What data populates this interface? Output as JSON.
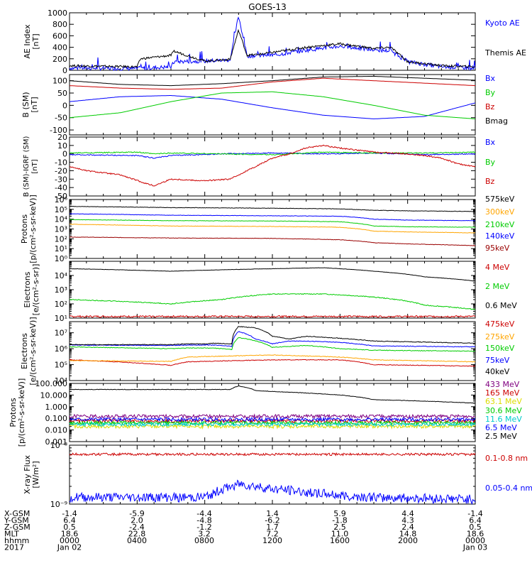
{
  "figure": {
    "title": "GOES-13"
  },
  "colors": {
    "black": "#000000",
    "blue": "#0000ff",
    "green": "#00cc00",
    "red": "#cc0000",
    "darkred": "#990000",
    "orange": "#ffa500",
    "cyan": "#00cccc",
    "yellow": "#dddd00",
    "purple": "#800080"
  },
  "chart_data": [
    {
      "type": "line",
      "title": "",
      "ylabel": "AE Index\n[nT]",
      "y_scale": "linear",
      "ylim": [
        0,
        1000
      ],
      "yticks": [
        0,
        200,
        400,
        600,
        800,
        1000
      ],
      "ytick_labels": [
        "0",
        "200",
        "400",
        "600",
        "800",
        "1000"
      ],
      "grid": false,
      "series": [
        {
          "name": "Kyoto AE",
          "color": "#0000ff",
          "noise": 70,
          "spiky": true,
          "x": [
            0,
            4,
            6,
            6.2,
            8,
            9.5,
            10,
            10.5,
            11.3,
            12,
            14,
            16,
            18,
            19,
            20,
            22,
            24
          ],
          "y": [
            40,
            30,
            60,
            150,
            160,
            180,
            950,
            250,
            260,
            260,
            350,
            420,
            350,
            340,
            150,
            60,
            40
          ]
        },
        {
          "name": "Themis AE",
          "color": "#000000",
          "noise": 40,
          "spiky": false,
          "x": [
            0,
            4,
            4.2,
            6,
            6.2,
            8,
            9.5,
            10,
            10.5,
            11.3,
            12,
            14,
            16,
            18,
            19,
            20,
            22,
            24
          ],
          "y": [
            80,
            60,
            200,
            260,
            330,
            160,
            190,
            700,
            260,
            280,
            310,
            400,
            460,
            380,
            400,
            150,
            80,
            60
          ]
        }
      ]
    },
    {
      "type": "line",
      "title": "",
      "ylabel": "B (SM)\n[nT]",
      "y_scale": "linear",
      "ylim": [
        -120,
        125
      ],
      "yticks": [
        -100,
        -50,
        0,
        50,
        100
      ],
      "ytick_labels": [
        "-100",
        "-50",
        "0",
        "50",
        "100"
      ],
      "grid": false,
      "series": [
        {
          "name": "Bx",
          "color": "#0000ff",
          "noise": 0,
          "x": [
            0,
            3,
            6,
            9,
            12,
            15,
            18,
            21,
            24
          ],
          "y": [
            15,
            35,
            40,
            25,
            -10,
            -40,
            -55,
            -45,
            10
          ]
        },
        {
          "name": "By",
          "color": "#00cc00",
          "noise": 0,
          "x": [
            0,
            3,
            6,
            9,
            12,
            15,
            18,
            21,
            24
          ],
          "y": [
            -50,
            -30,
            15,
            50,
            55,
            35,
            0,
            -40,
            -55
          ]
        },
        {
          "name": "Bz",
          "color": "#cc0000",
          "noise": 0,
          "x": [
            0,
            3,
            6,
            9,
            12,
            15,
            18,
            21,
            24
          ],
          "y": [
            80,
            70,
            65,
            70,
            95,
            110,
            100,
            90,
            80
          ]
        },
        {
          "name": "Bmag",
          "color": "#000000",
          "noise": 0,
          "x": [
            0,
            3,
            6,
            9,
            12,
            15,
            18,
            21,
            24
          ],
          "y": [
            100,
            85,
            80,
            88,
            100,
            115,
            118,
            110,
            102
          ]
        }
      ]
    },
    {
      "type": "line",
      "title": "",
      "ylabel": "B (SM)-IGRF (SM)\n[nT]",
      "y_scale": "linear",
      "ylim": [
        -50,
        20
      ],
      "yticks": [
        -50,
        -40,
        -30,
        -20,
        -10,
        0,
        10,
        20
      ],
      "ytick_labels": [
        "-50",
        "-40",
        "-30",
        "-20",
        "-10",
        "0",
        "10",
        "20"
      ],
      "grid": false,
      "series": [
        {
          "name": "Bx",
          "color": "#0000ff",
          "noise": 1.2,
          "x": [
            0,
            4,
            5,
            6,
            9,
            12,
            15,
            18,
            21,
            24
          ],
          "y": [
            -1,
            -2,
            -5,
            -2,
            0,
            1,
            0,
            1,
            -1,
            0
          ]
        },
        {
          "name": "By",
          "color": "#00cc00",
          "noise": 1.2,
          "x": [
            0,
            4,
            5,
            6,
            9,
            12,
            15,
            18,
            21,
            24
          ],
          "y": [
            1,
            2,
            0,
            1,
            0,
            -1,
            2,
            1,
            1,
            2
          ]
        },
        {
          "name": "Bz",
          "color": "#cc0000",
          "noise": 1.5,
          "x": [
            0,
            1,
            3,
            4.5,
            5,
            6,
            8,
            9.5,
            11,
            12,
            13,
            14,
            15,
            16,
            18,
            20,
            21,
            22,
            23,
            24
          ],
          "y": [
            -15,
            -20,
            -25,
            -35,
            -38,
            -30,
            -32,
            -30,
            -15,
            -5,
            0,
            7,
            10,
            7,
            2,
            0,
            -2,
            -5,
            -12,
            -15
          ]
        }
      ]
    },
    {
      "type": "line",
      "title": "",
      "ylabel": "Protons\n[p/(cm²-s-sr-keV)]",
      "y_scale": "log",
      "ylim": [
        1,
        1000000
      ],
      "yticks": [
        1,
        10,
        100,
        1000,
        10000,
        100000,
        1000000
      ],
      "ytick_labels": [
        "10⁰",
        "10¹",
        "10²",
        "10³",
        "10⁴",
        "10⁵",
        "10⁶"
      ],
      "grid": false,
      "series": [
        {
          "name": "575keV",
          "color": "#000000",
          "noise": 0.02,
          "x": [
            0,
            6,
            12,
            16,
            18,
            20,
            24
          ],
          "y": [
            200000,
            150000,
            130000,
            110000,
            80000,
            70000,
            60000
          ]
        },
        {
          "name": "300keV",
          "color": "#ffa500",
          "noise": 0.02,
          "x": [
            0,
            6,
            12,
            16,
            18,
            20,
            24
          ],
          "y": [
            3000,
            2000,
            1800,
            1500,
            600,
            500,
            400
          ]
        },
        {
          "name": "210keV",
          "color": "#00cc00",
          "noise": 0.02,
          "x": [
            0,
            6,
            12,
            16,
            18,
            20,
            24
          ],
          "y": [
            9000,
            7000,
            6500,
            5500,
            2000,
            1700,
            1500
          ]
        },
        {
          "name": "140keV",
          "color": "#0000ff",
          "noise": 0.02,
          "x": [
            0,
            6,
            12,
            16,
            18,
            20,
            24
          ],
          "y": [
            35000,
            25000,
            22000,
            20000,
            10000,
            8000,
            7000
          ]
        },
        {
          "name": "95keV",
          "color": "#990000",
          "noise": 0.02,
          "x": [
            0,
            6,
            12,
            16,
            18,
            20,
            24
          ],
          "y": [
            150,
            120,
            110,
            80,
            40,
            30,
            20
          ]
        }
      ]
    },
    {
      "type": "line",
      "title": "",
      "ylabel": "Electrons\n[e/(cm²-s-sr)]",
      "y_scale": "log",
      "ylim": [
        10,
        100000
      ],
      "yticks": [
        10,
        100,
        1000,
        10000
      ],
      "ytick_labels": [
        "10¹",
        "10²",
        "10³",
        "10⁴"
      ],
      "grid": false,
      "series": [
        {
          "name": "4 MeV",
          "color": "#cc0000",
          "noise": 0.06,
          "x": [
            0,
            24
          ],
          "y": [
            13,
            13
          ]
        },
        {
          "name": "2 MeV",
          "color": "#00cc00",
          "noise": 0.03,
          "x": [
            0,
            3,
            6,
            9,
            12,
            15,
            18,
            21,
            24
          ],
          "y": [
            200,
            150,
            100,
            200,
            500,
            500,
            300,
            80,
            40
          ]
        },
        {
          "name": "0.6 MeV",
          "color": "#000000",
          "noise": 0.01,
          "x": [
            0,
            3,
            6,
            9,
            12,
            15,
            18,
            21,
            24
          ],
          "y": [
            30000,
            25000,
            20000,
            25000,
            30000,
            35000,
            20000,
            8000,
            4000
          ]
        }
      ]
    },
    {
      "type": "line",
      "title": "",
      "ylabel": "Electrons\n[e/(cm²-s-sr-keV)]",
      "y_scale": "log",
      "ylim": [
        10000,
        50000000
      ],
      "yticks": [
        10000,
        100000,
        1000000,
        10000000
      ],
      "ytick_labels": [
        "10⁴",
        "10⁵",
        "10⁶",
        "10⁷"
      ],
      "grid": false,
      "series": [
        {
          "name": "475keV",
          "color": "#cc0000",
          "noise": 0.02,
          "x": [
            0,
            6,
            7,
            12,
            16,
            18,
            24
          ],
          "y": [
            200000,
            90000,
            150000,
            200000,
            200000,
            100000,
            80000
          ]
        },
        {
          "name": "275keV",
          "color": "#ffa500",
          "noise": 0.02,
          "x": [
            0,
            6,
            7,
            12,
            16,
            18,
            24
          ],
          "y": [
            180000,
            160000,
            300000,
            400000,
            300000,
            200000,
            150000
          ]
        },
        {
          "name": "150keV",
          "color": "#00cc00",
          "noise": 0.02,
          "x": [
            0,
            6,
            7,
            8.5,
            9.6,
            10,
            12,
            14,
            16,
            18,
            24
          ],
          "y": [
            1300000,
            1000000,
            1100000,
            1100000,
            900000,
            5000000,
            1200000,
            1600000,
            1000000,
            800000,
            700000
          ]
        },
        {
          "name": "75keV",
          "color": "#0000ff",
          "noise": 0.02,
          "x": [
            0,
            6,
            7,
            8.5,
            9.6,
            10,
            11,
            12,
            13,
            14,
            16,
            18,
            24
          ],
          "y": [
            1700000,
            1600000,
            1700000,
            1700000,
            1400000,
            12000000,
            4000000,
            2000000,
            3000000,
            3000000,
            2500000,
            1500000,
            1300000
          ]
        },
        {
          "name": "40keV",
          "color": "#000000",
          "noise": 0.02,
          "x": [
            0,
            6,
            7,
            8,
            8.5,
            9.6,
            10,
            11,
            12,
            13,
            14,
            16,
            18,
            24
          ],
          "y": [
            1800000,
            1800000,
            2000000,
            2000000,
            2200000,
            2000000,
            25000000,
            20000000,
            6000000,
            4000000,
            6000000,
            4500000,
            3000000,
            2200000
          ]
        }
      ]
    },
    {
      "type": "line",
      "title": "",
      "ylabel": "Protons\n[p/(cm²-s-sr-keV)]",
      "y_scale": "log",
      "ylim": [
        0.001,
        100
      ],
      "yticks": [
        0.001,
        0.01,
        0.1,
        1,
        10,
        100
      ],
      "ytick_labels": [
        "0.001",
        "0.010",
        "0.100",
        "1.000",
        "10.000",
        "100.000"
      ],
      "grid": false,
      "series": [
        {
          "name": "433 MeV",
          "color": "#800080",
          "noise": 0.15,
          "x": [
            0,
            24
          ],
          "y": [
            0.15,
            0.15
          ]
        },
        {
          "name": "165 MeV",
          "color": "#cc0000",
          "noise": 0.15,
          "x": [
            0,
            24
          ],
          "y": [
            0.06,
            0.06
          ]
        },
        {
          "name": "63.1 MeV",
          "color": "#dddd00",
          "noise": 0.15,
          "x": [
            0,
            24
          ],
          "y": [
            0.02,
            0.02
          ]
        },
        {
          "name": "30.6 MeV",
          "color": "#00cc00",
          "noise": 0.15,
          "x": [
            0,
            24
          ],
          "y": [
            0.04,
            0.04
          ]
        },
        {
          "name": "11.6 MeV",
          "color": "#00cccc",
          "noise": 0.15,
          "x": [
            0,
            24
          ],
          "y": [
            0.03,
            0.03
          ]
        },
        {
          "name": "6.5 MeV",
          "color": "#0000ff",
          "noise": 0.15,
          "x": [
            0,
            24
          ],
          "y": [
            0.08,
            0.08
          ]
        },
        {
          "name": "2.5 MeV",
          "color": "#000000",
          "noise": 0.02,
          "x": [
            0,
            9.5,
            10,
            11,
            12,
            16,
            18,
            24
          ],
          "y": [
            30,
            30,
            60,
            25,
            20,
            10,
            4,
            2
          ]
        }
      ]
    },
    {
      "type": "line",
      "title": "",
      "ylabel": "X-ray Flux\n[W/m²]",
      "y_scale": "log",
      "ylim": [
        1e-09,
        1e-08
      ],
      "yticks": [
        1e-09,
        1e-08
      ],
      "ytick_labels": [
        "10⁻⁹",
        "10⁻⁸"
      ],
      "grid": false,
      "series": [
        {
          "name": "0.1-0.8 nm",
          "color": "#cc0000",
          "noise": 0.02,
          "x": [
            0,
            24
          ],
          "y": [
            7e-09,
            7e-09
          ]
        },
        {
          "name": "0.05-0.4 nm",
          "color": "#0000ff",
          "noise": 0.08,
          "x": [
            0,
            8,
            10,
            12,
            16,
            18,
            24
          ],
          "y": [
            1.3e-09,
            1.3e-09,
            2.2e-09,
            1.8e-09,
            1.4e-09,
            1.3e-09,
            1.2e-09
          ]
        }
      ]
    }
  ],
  "orbit_table": {
    "rows": [
      {
        "label": "X-GSM",
        "values": [
          "-1.4",
          "-5.9",
          "-4.4",
          "1.4",
          "5.9",
          "4.4",
          "-1.4"
        ]
      },
      {
        "label": "Y-GSM",
        "values": [
          "6.4",
          "2.0",
          "-4.8",
          "-6.2",
          "-1.8",
          "4.3",
          "6.4"
        ]
      },
      {
        "label": "Z-GSM",
        "values": [
          "0.5",
          "-2.4",
          "-1.2",
          "1.7",
          "2.5",
          "2.4",
          "0.5"
        ]
      },
      {
        "label": "MLT",
        "values": [
          "18.6",
          "22.8",
          "3.2",
          "7.2",
          "11.0",
          "14.8",
          "18.6"
        ]
      },
      {
        "label": "hhmm",
        "values": [
          "0000",
          "0400",
          "0800",
          "1200",
          "1600",
          "2000",
          "0000"
        ]
      },
      {
        "label": "2017",
        "values": [
          "Jan 02",
          "",
          "",
          "",
          "",
          "",
          "Jan 03"
        ]
      }
    ]
  }
}
